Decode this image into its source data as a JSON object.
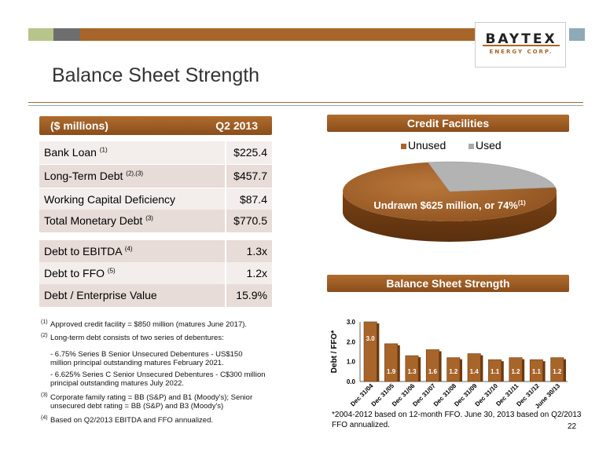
{
  "logo": {
    "word": "BAYTEX",
    "sub": "ENERGY CORP."
  },
  "title": "Balance Sheet Strength",
  "table": {
    "header_left": "($ millions)",
    "header_right": "Q2 2013",
    "rows1": [
      {
        "label": "Bank Loan",
        "sup": "(1)",
        "value": "$225.4"
      },
      {
        "label": "Long-Term Debt",
        "sup": "(2),(3)",
        "value": "$457.7"
      },
      {
        "label": "Working Capital Deficiency",
        "sup": "",
        "value": "$87.4"
      },
      {
        "label": "Total Monetary Debt",
        "sup": "(3)",
        "value": "$770.5"
      }
    ],
    "rows2": [
      {
        "label": "Debt to EBITDA",
        "sup": "(4)",
        "value": "1.3x"
      },
      {
        "label": "Debt to FFO",
        "sup": "(5)",
        "value": "1.2x"
      },
      {
        "label": "Debt  / Enterprise Value",
        "sup": "",
        "value": "15.9%"
      }
    ]
  },
  "footnotes": {
    "f1_mark": "(1)",
    "f1": "Approved credit facility = $850 million (matures June 2017).",
    "f2_mark": "(2)",
    "f2": "Long-term debt consists of two series of debentures:",
    "f2a": "-  6.75% Series B Senior Unsecured Debentures - US$150 million principal outstanding matures February 2021.",
    "f2b": "-  6.625% Series C Senior Unsecured Debentures - C$300 million principal outstanding matures July 2022.",
    "f3_mark": "(3)",
    "f3": "Corporate family rating = BB (S&P) and B1 (Moody's); Senior unsecured debt rating = BB (S&P) and B3 (Moody's)",
    "f4_mark": "(4)",
    "f4": "Based on Q2/2013 EBITDA and FFO annualized."
  },
  "credit": {
    "header": "Credit Facilities",
    "legend_unused": "Unused",
    "legend_used": "Used",
    "label": "Undrawn $625 million, or 74%",
    "label_sup": "(1)"
  },
  "bss_header": "Balance Sheet Strength",
  "chart_note": "*2004-2012 based on 12-month FFO. June 30, 2013 based on Q2/2013 FFO annualized.",
  "page_number": "22",
  "colors": {
    "brown": "#a8652a",
    "dark_brown": "#7a4214",
    "grey": "#b8b8b8"
  },
  "chart_data": [
    {
      "type": "pie",
      "categories": [
        "Unused",
        "Used"
      ],
      "values": [
        74,
        26
      ],
      "annotation": "Undrawn $625 million, or 74%(1)"
    },
    {
      "type": "bar",
      "categories": [
        "Dec 31/04",
        "Dec 31/05",
        "Dec 31/06",
        "Dec 31/07",
        "Dec 31/08",
        "Dec 31/09",
        "Dec 31/10",
        "Dec 31/11",
        "Dec 31/12",
        "June 30/13"
      ],
      "values": [
        3.0,
        1.9,
        1.3,
        1.6,
        1.2,
        1.4,
        1.1,
        1.2,
        1.1,
        1.2
      ],
      "value_labels": [
        "3.0",
        "1.9",
        "1.3",
        "1.6",
        "1.2",
        "1.4",
        "1.1",
        "1.2",
        "1.1",
        "1.2"
      ],
      "ylabel": "Debt / FFO*",
      "ylim": [
        0,
        3
      ],
      "yticks": [
        "0.0",
        "1.0",
        "2.0",
        "3.0"
      ]
    }
  ]
}
